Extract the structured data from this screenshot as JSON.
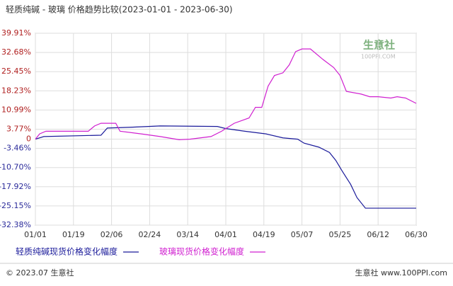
{
  "chart_data": {
    "type": "line",
    "title": "轻质纯碱 - 玻璃 价格趋势比较(2023-01-01 - 2023-06-30)",
    "watermark": "生意社",
    "watermark_url": "100PPI.COM",
    "footer_left": "© 2023.07 生意社",
    "footer_right": "生意社  www.100PPI.com",
    "xlim": [
      "01/01",
      "06/30"
    ],
    "xticks": [
      "01/01",
      "01/19",
      "02/06",
      "02/24",
      "03/14",
      "04/01",
      "04/19",
      "05/07",
      "05/25",
      "06/12",
      "06/30"
    ],
    "ylim": [
      -32.38,
      39.91
    ],
    "yticks": [
      {
        "value": 39.91,
        "label": "39.91%"
      },
      {
        "value": 32.68,
        "label": "32.68%"
      },
      {
        "value": 25.45,
        "label": "25.45%"
      },
      {
        "value": 18.23,
        "label": "18.23%"
      },
      {
        "value": 10.99,
        "label": "10.99%"
      },
      {
        "value": 3.77,
        "label": "3.77%"
      },
      {
        "value": 0,
        "label": "0"
      },
      {
        "value": -3.46,
        "label": "-3.46%"
      },
      {
        "value": -10.7,
        "label": "-10.70%"
      },
      {
        "value": -17.92,
        "label": "-17.92%"
      },
      {
        "value": -25.15,
        "label": "-25.15%"
      },
      {
        "value": -32.38,
        "label": "-32.38%"
      }
    ],
    "grid": true,
    "series": [
      {
        "name": "轻质纯碱现货价格变化幅度",
        "color": "#1a1a9a",
        "x": [
          "01/01",
          "01/05",
          "02/01",
          "02/04",
          "02/15",
          "03/01",
          "03/28",
          "04/01",
          "04/10",
          "04/20",
          "04/28",
          "05/05",
          "05/08",
          "05/15",
          "05/20",
          "05/23",
          "05/26",
          "05/30",
          "06/02",
          "06/06",
          "06/30"
        ],
        "values": [
          0,
          1,
          1.5,
          4.2,
          4.5,
          5,
          4.8,
          4,
          3,
          2,
          0.5,
          0,
          -1.5,
          -3,
          -5,
          -8,
          -12,
          -17,
          -22,
          -26,
          -26
        ]
      },
      {
        "name": "玻璃现货价格变化幅度",
        "color": "#d020d0",
        "x": [
          "01/01",
          "01/03",
          "01/06",
          "01/26",
          "01/29",
          "02/01",
          "02/08",
          "02/10",
          "02/20",
          "03/01",
          "03/10",
          "03/15",
          "03/25",
          "03/30",
          "04/05",
          "04/12",
          "04/15",
          "04/18",
          "04/21",
          "04/24",
          "04/28",
          "05/01",
          "05/04",
          "05/07",
          "05/11",
          "05/17",
          "05/22",
          "05/25",
          "05/28",
          "06/04",
          "06/08",
          "06/12",
          "06/18",
          "06/21",
          "06/25",
          "06/30"
        ],
        "values": [
          0,
          2,
          3,
          3,
          5,
          6,
          6,
          3,
          2,
          1,
          -0.2,
          0,
          1,
          3,
          6,
          8,
          12,
          12,
          20,
          24,
          25,
          28,
          33,
          34,
          34,
          30,
          27,
          24,
          18,
          17,
          16,
          16,
          15.5,
          16,
          15.5,
          13.5
        ]
      }
    ]
  }
}
